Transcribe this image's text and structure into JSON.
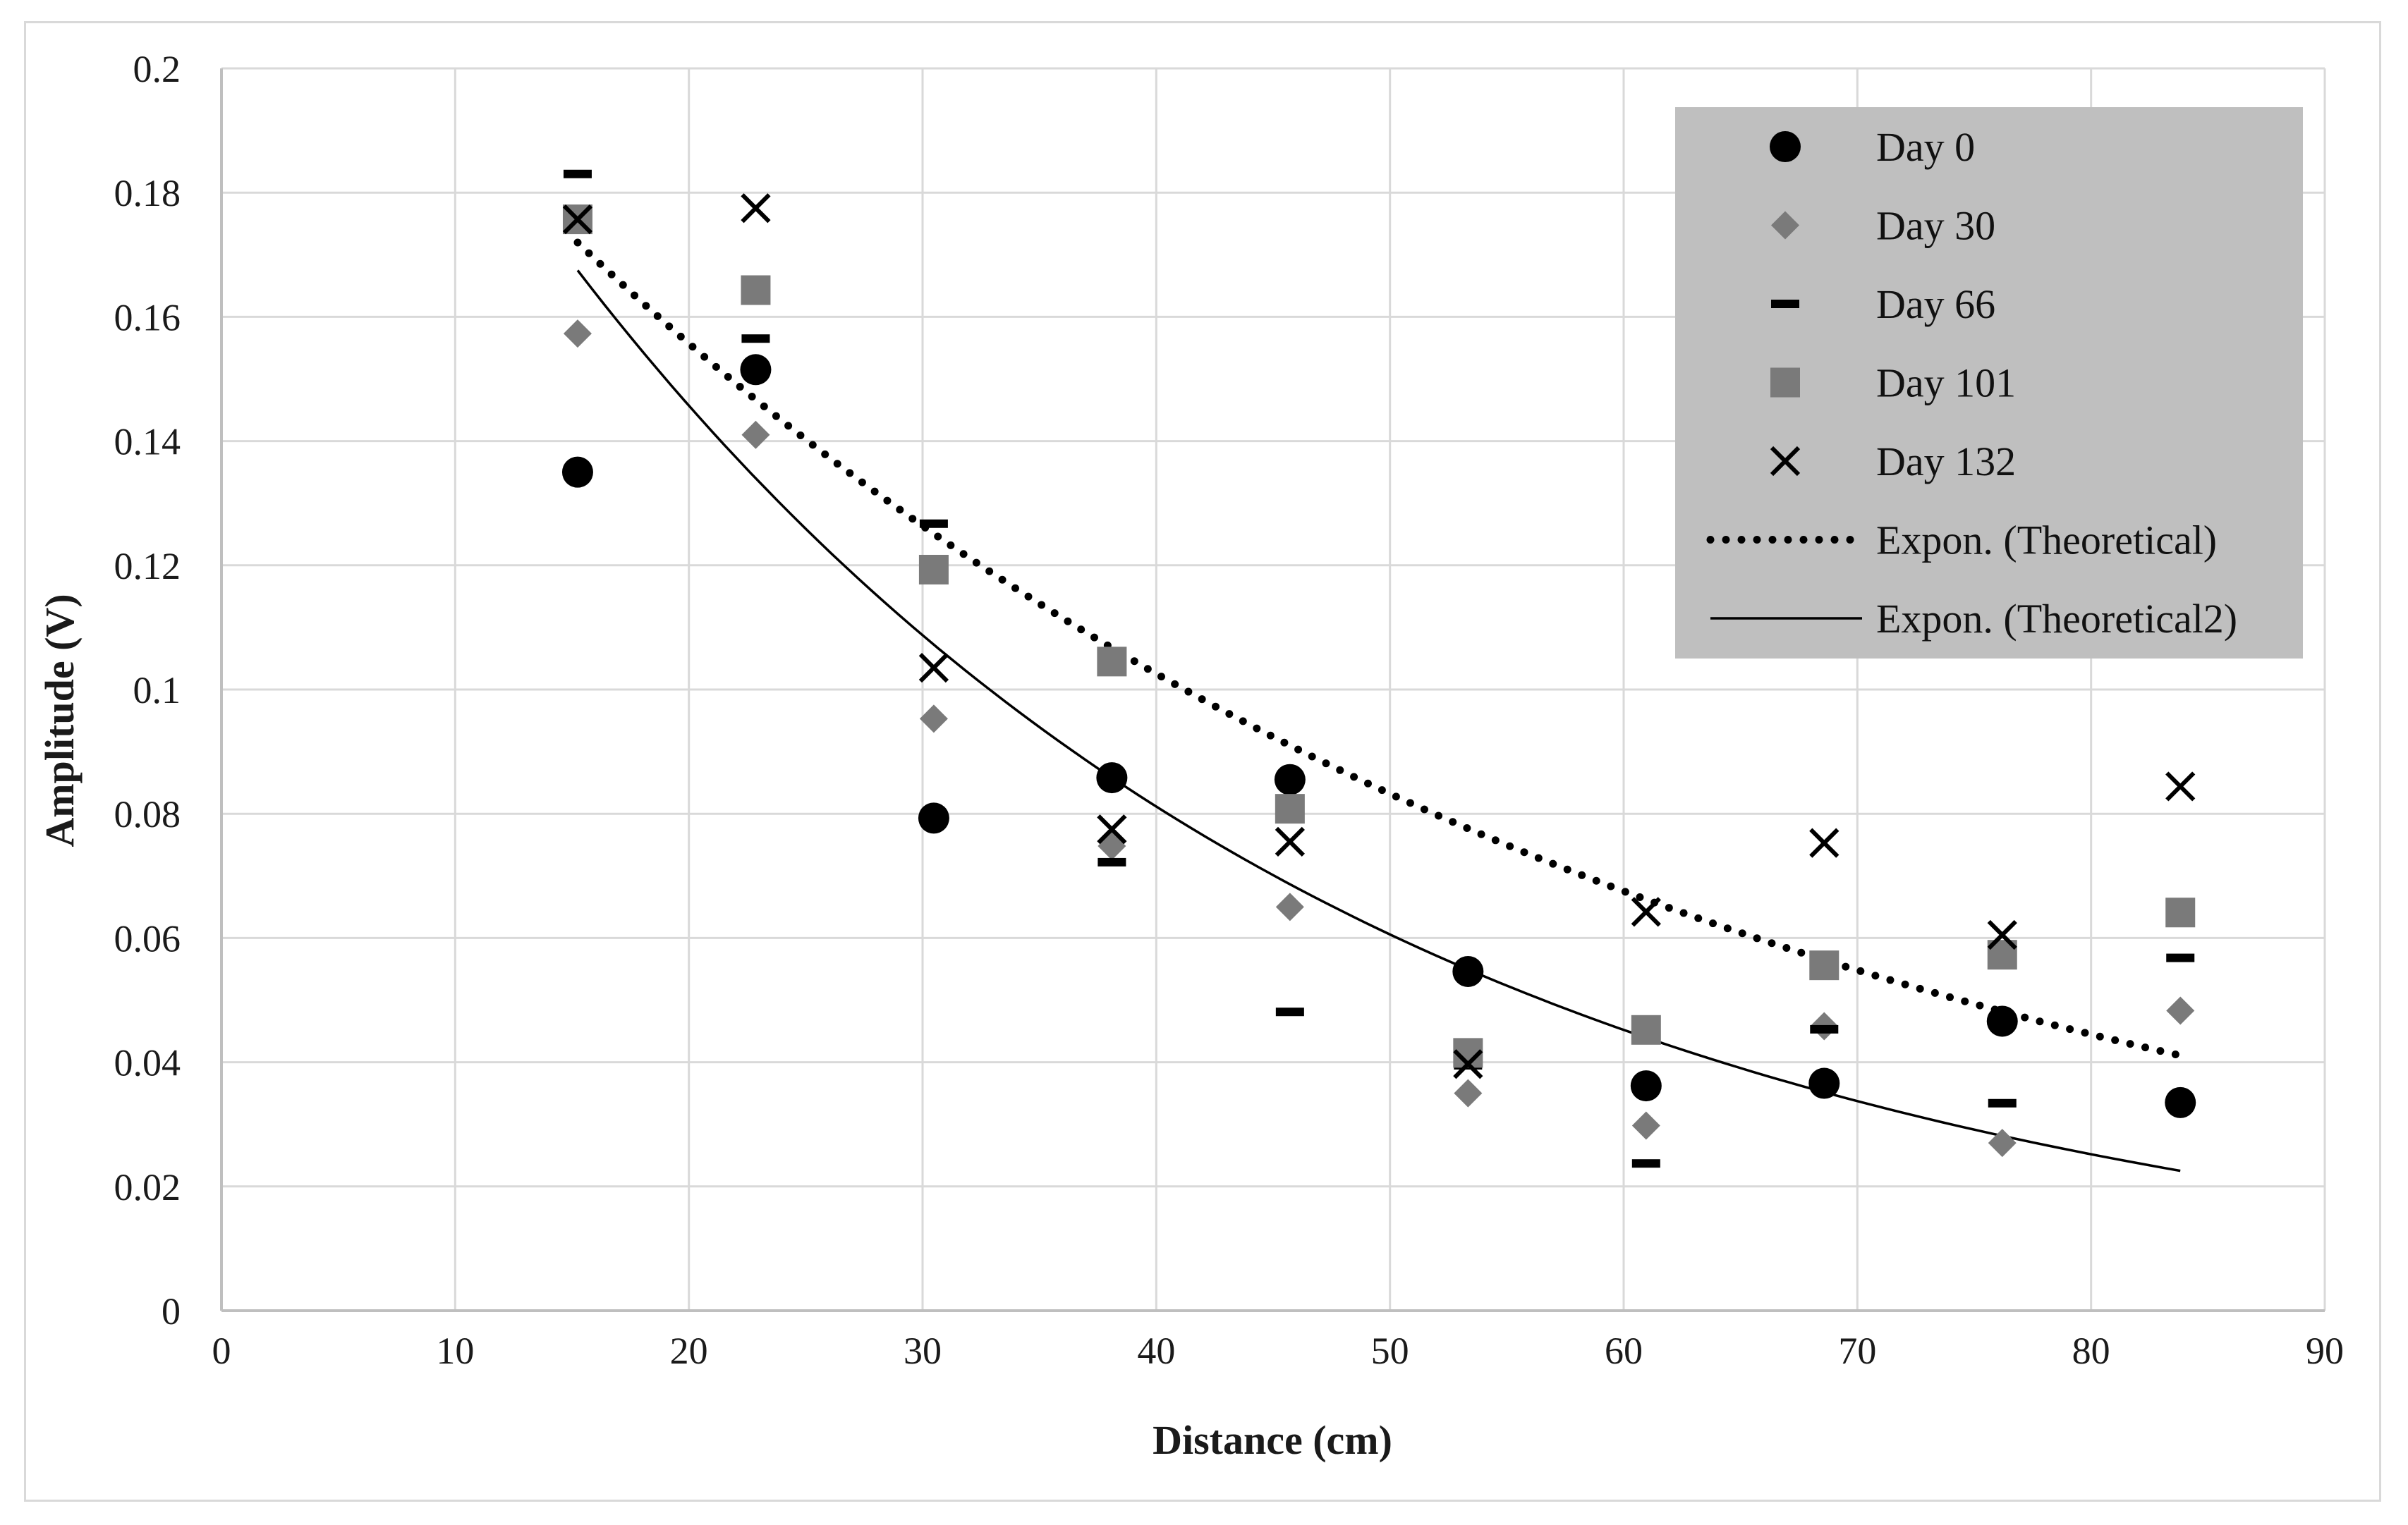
{
  "chart_data": {
    "type": "scatter",
    "title": "",
    "xlabel": "Distance (cm)",
    "ylabel": "Amplitude (V)",
    "xlim": [
      0,
      90
    ],
    "ylim": [
      0,
      0.2
    ],
    "xticks": [
      0,
      10,
      20,
      30,
      40,
      50,
      60,
      70,
      80,
      90
    ],
    "yticks": [
      0,
      0.02,
      0.04,
      0.06,
      0.08,
      0.1,
      0.12,
      0.14,
      0.16,
      0.18,
      0.2
    ],
    "ytick_labels": [
      "0",
      "0.02",
      "0.04",
      "0.06",
      "0.08",
      "0.1",
      "0.12",
      "0.14",
      "0.16",
      "0.18",
      "0.2"
    ],
    "grid": true,
    "legend_position": "top-right",
    "x": [
      15.24,
      22.86,
      30.48,
      38.1,
      45.72,
      53.34,
      60.96,
      68.58,
      76.2,
      83.82
    ],
    "series": [
      {
        "name": "Day 0",
        "marker": "circle",
        "color": "#000000",
        "values": [
          0.135,
          0.1515,
          0.0793,
          0.0858,
          0.0855,
          0.0546,
          0.0362,
          0.0366,
          0.0466,
          0.0335
        ]
      },
      {
        "name": "Day 30",
        "marker": "diamond",
        "color": "#7a7a7a",
        "values": [
          0.1573,
          0.141,
          0.0953,
          0.0748,
          0.065,
          0.035,
          0.0298,
          0.0458,
          0.027,
          0.0483
        ]
      },
      {
        "name": "Day 66",
        "marker": "dash",
        "color": "#000000",
        "values": [
          0.183,
          0.1565,
          0.1267,
          0.0722,
          0.0481,
          0.0395,
          0.0237,
          0.0453,
          0.0334,
          0.0568
        ]
      },
      {
        "name": "Day 101",
        "marker": "square",
        "color": "#7a7a7a",
        "values": [
          0.1757,
          0.1643,
          0.1193,
          0.1045,
          0.0808,
          0.0415,
          0.0452,
          0.0556,
          0.0573,
          0.0641
        ]
      },
      {
        "name": "Day 132",
        "marker": "x",
        "color": "#000000",
        "values": [
          0.1757,
          0.1775,
          0.1035,
          0.0775,
          0.0755,
          0.0397,
          0.0642,
          0.0753,
          0.0605,
          0.0844
        ]
      }
    ],
    "trendlines": [
      {
        "name": "Expon. (Theoretical)",
        "style": "dotted",
        "color": "#000000",
        "x_range": [
          15.24,
          83.82
        ],
        "a": 0.2364,
        "b": -0.02088
      },
      {
        "name": "Expon. (Theoretical2)",
        "style": "solid",
        "color": "#000000",
        "x_range": [
          15.24,
          83.82
        ],
        "a": 0.2616,
        "b": -0.02926
      }
    ]
  }
}
